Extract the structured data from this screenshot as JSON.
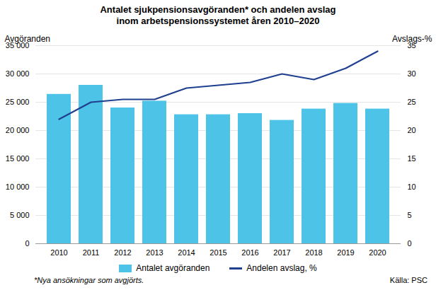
{
  "chart_data": {
    "type": "bar",
    "title": "Antalet sjukpensionsavgöranden* och andelen avslag\ninom arbetspensionssystemet åren 2010–2020",
    "categories": [
      "2010",
      "2011",
      "2012",
      "2013",
      "2014",
      "2015",
      "2016",
      "2017",
      "2018",
      "2019",
      "2020"
    ],
    "series": [
      {
        "name": "Antalet avgöranden",
        "type": "bar",
        "color": "#4DC3E8",
        "values": [
          26400,
          28000,
          24000,
          25200,
          22800,
          22800,
          23000,
          21800,
          23800,
          24800,
          23800
        ]
      },
      {
        "name": "Andelen avslag, %",
        "type": "line",
        "axis": "y2",
        "color": "#1F3F8F",
        "values": [
          22,
          25,
          25.5,
          25.5,
          27.5,
          28,
          28.5,
          30,
          29,
          31,
          34
        ]
      }
    ],
    "ylabel": "Avgöranden",
    "y2label": "Avslags-%",
    "ylim": [
      0,
      35000
    ],
    "yticks": [
      0,
      {
        "value": 5000,
        "label": "5 000"
      },
      {
        "value": 10000,
        "label": "10 000"
      },
      {
        "value": 15000,
        "label": "15 000"
      },
      {
        "value": 20000,
        "label": "20 000"
      },
      {
        "value": 25000,
        "label": "25 000"
      },
      {
        "value": 30000,
        "label": "30 000"
      },
      {
        "value": 35000,
        "label": "35 000"
      }
    ],
    "y2lim": [
      0,
      35
    ],
    "y2ticks": [
      0,
      5,
      10,
      15,
      20,
      25,
      30,
      35
    ],
    "grid": true,
    "legend": "bottom",
    "footnote": "*Nya ansökningar som avgjörts.",
    "source": "Källa: PSC"
  }
}
